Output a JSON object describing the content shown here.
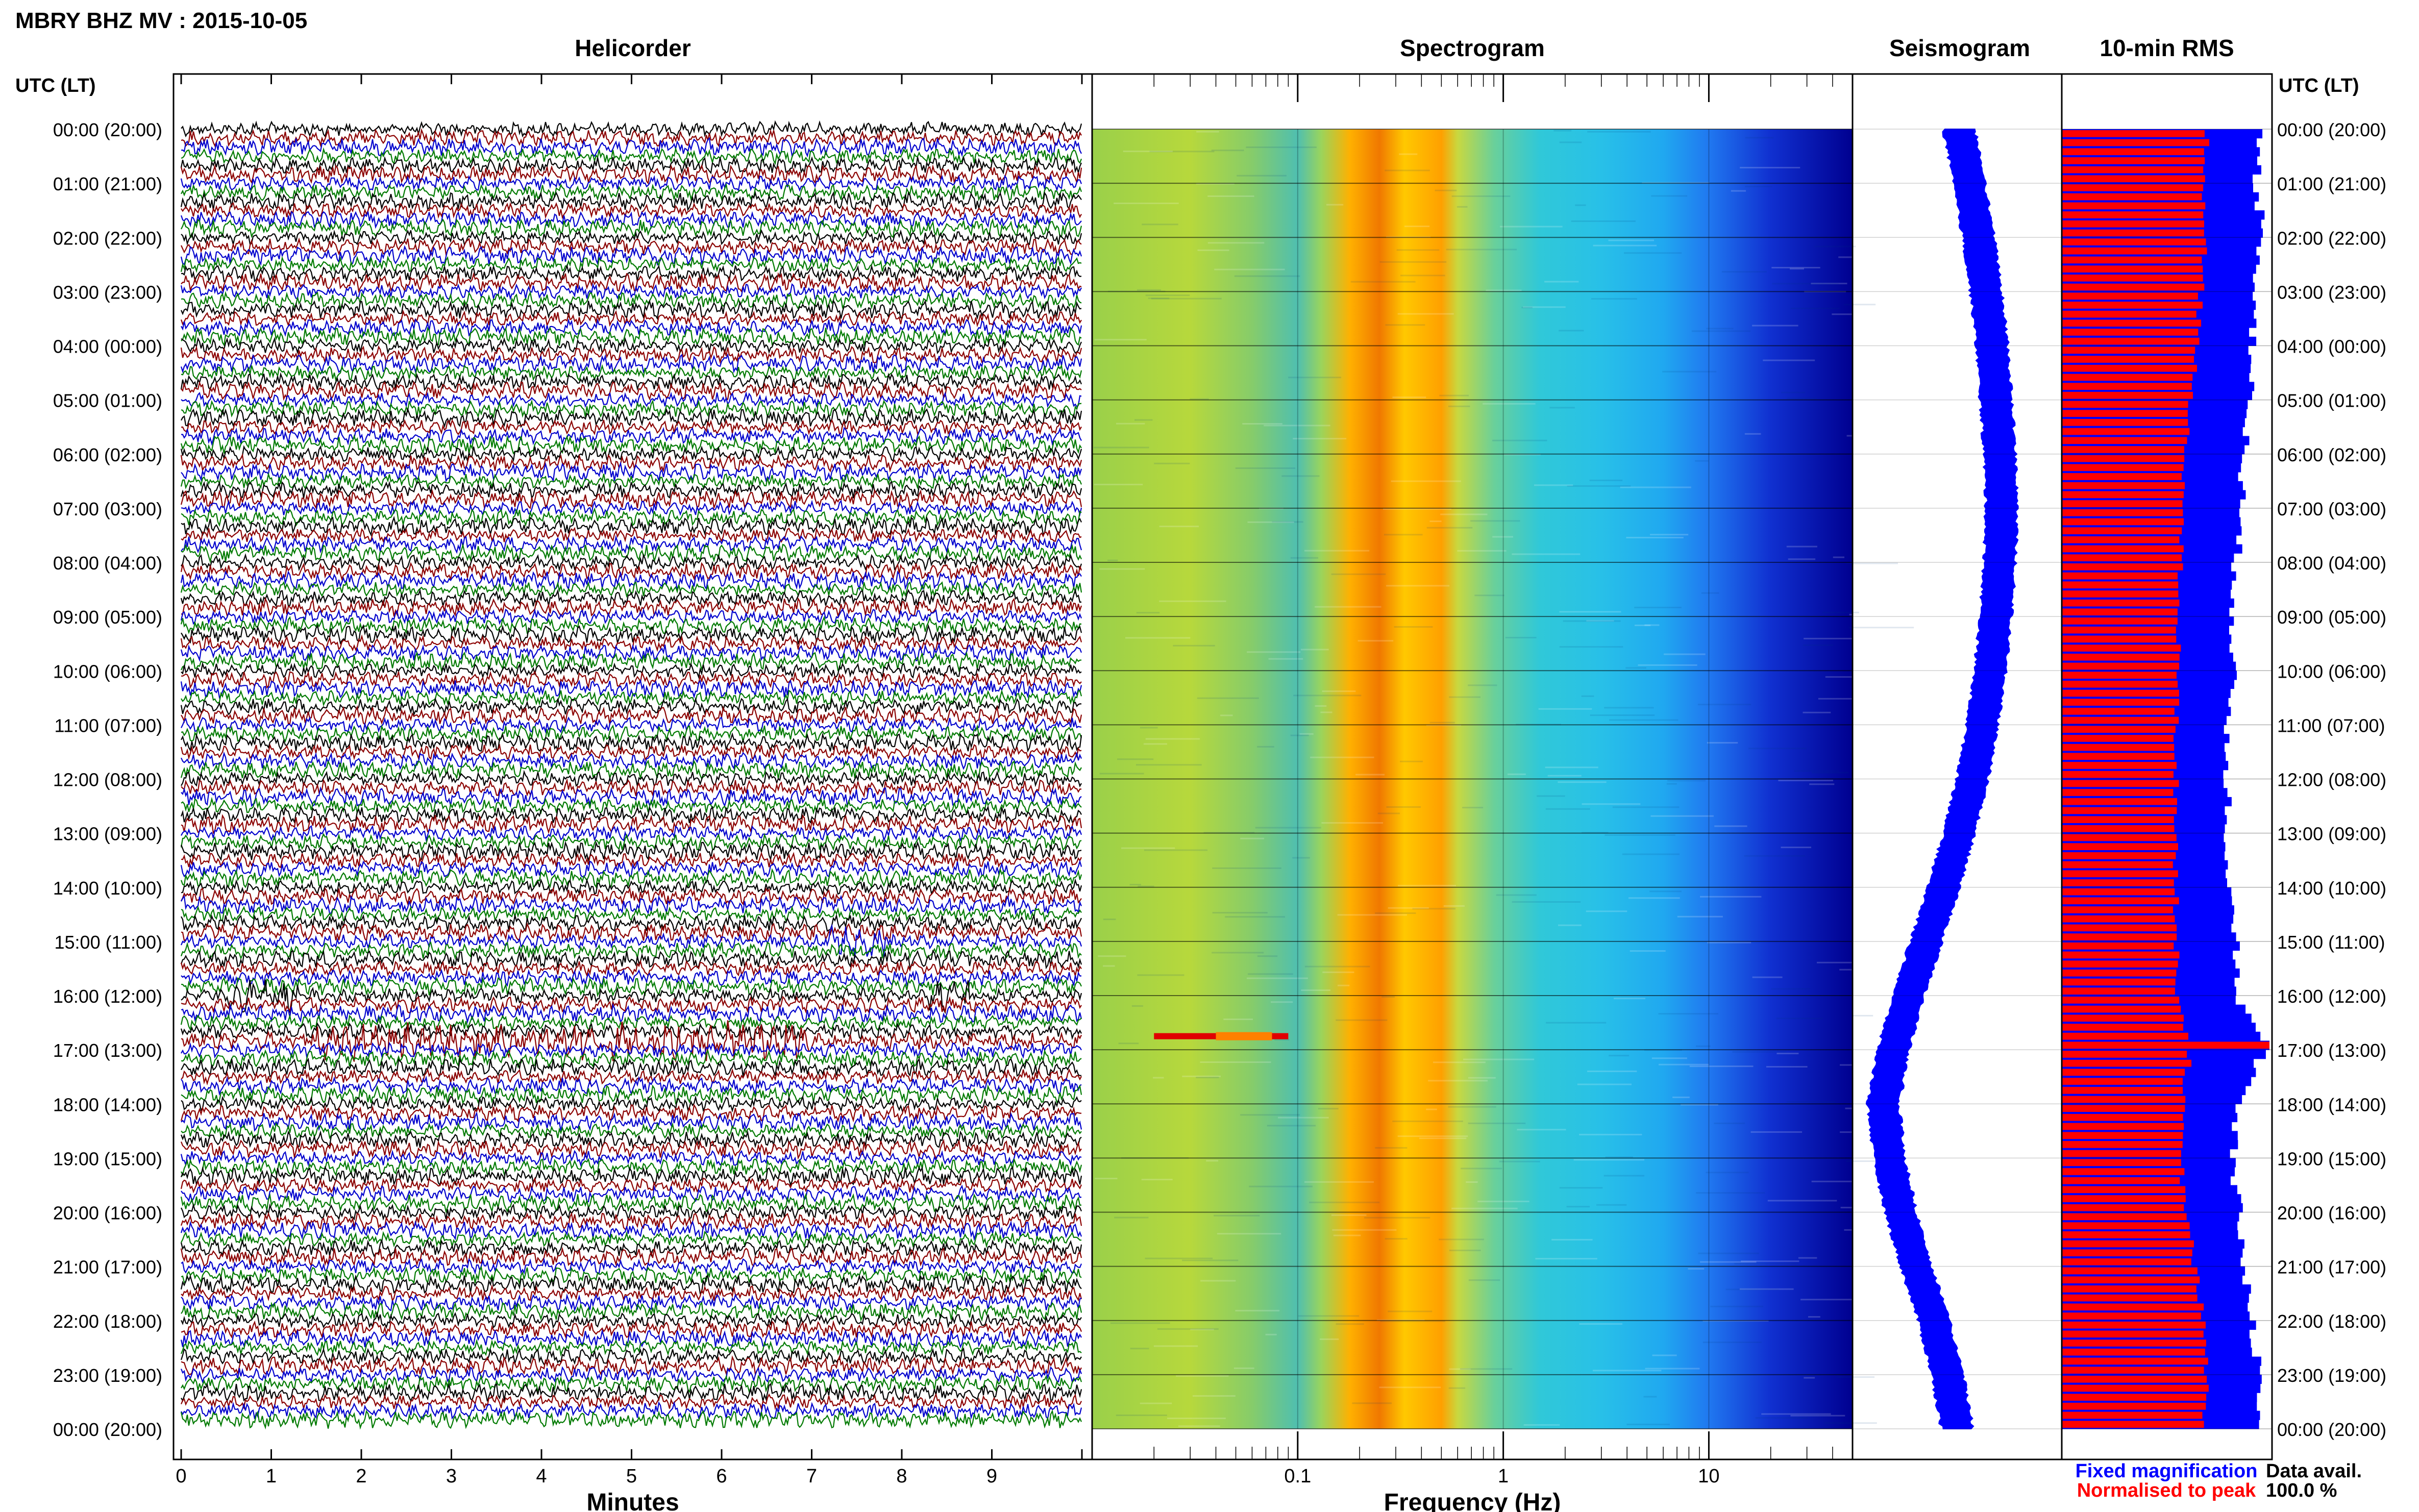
{
  "title": "MBRY BHZ MV : 2015-10-05",
  "panels": {
    "helicorder": "Helicorder",
    "spectrogram": "Spectrogram",
    "seismogram": "Seismogram",
    "rms": "10-min RMS"
  },
  "axis": {
    "time_label_left": "UTC (LT)",
    "time_label_right": "UTC (LT)",
    "helicorder_xlabel": "Minutes",
    "spectrogram_xlabel": "Frequency (Hz)"
  },
  "legend": {
    "fixed": "Fixed magnification",
    "normalised": "Normalised to peak",
    "fixed_color": "#0000ff",
    "normalised_color": "#ff0000"
  },
  "data_avail": {
    "label": "Data avail.",
    "value": "100.0 %"
  },
  "chart_data": {
    "type": "multi-panel seismic plot",
    "time_ticks": [
      "00:00 (20:00)",
      "01:00 (21:00)",
      "02:00 (22:00)",
      "03:00 (23:00)",
      "04:00 (00:00)",
      "05:00 (01:00)",
      "06:00 (02:00)",
      "07:00 (03:00)",
      "08:00 (04:00)",
      "09:00 (05:00)",
      "10:00 (06:00)",
      "11:00 (07:00)",
      "12:00 (08:00)",
      "13:00 (09:00)",
      "14:00 (10:00)",
      "15:00 (11:00)",
      "16:00 (12:00)",
      "17:00 (13:00)",
      "18:00 (14:00)",
      "19:00 (15:00)",
      "20:00 (16:00)",
      "21:00 (17:00)",
      "22:00 (18:00)",
      "23:00 (19:00)",
      "00:00 (20:00)"
    ],
    "helicorder": {
      "x_ticks": [
        0,
        1,
        2,
        3,
        4,
        5,
        6,
        7,
        8,
        9
      ],
      "xlim": [
        0,
        10
      ],
      "traces_per_hour": 6,
      "trace_colors": [
        "#000000",
        "#8b0000",
        "#0000cd",
        "#007a00"
      ],
      "events": [
        {
          "hour": 15.0,
          "minute_start": 7.2,
          "minute_end": 7.9
        },
        {
          "hour": 16.0,
          "minute_start": 0.5,
          "minute_end": 1.3
        },
        {
          "hour": 16.0,
          "minute_start": 8.3,
          "minute_end": 8.8
        },
        {
          "hour": 16.8,
          "minute_start": 1.5,
          "minute_end": 7.0
        }
      ]
    },
    "spectrogram": {
      "x_ticks": [
        0.1,
        1,
        10
      ],
      "xlim": [
        0.01,
        50
      ],
      "xscale": "log",
      "peak_band_hz": [
        0.18,
        0.5
      ],
      "burst": {
        "hour": 16.75,
        "f_start": 0.02,
        "f_end": 0.09
      }
    },
    "seismogram": {
      "hours": [
        0,
        1,
        2,
        3,
        4,
        5,
        6,
        7,
        8,
        9,
        10,
        11,
        12,
        13,
        14,
        15,
        16,
        17,
        18,
        19,
        20,
        21,
        22,
        23,
        24
      ],
      "offset": [
        0.42,
        0.47,
        0.52,
        0.56,
        0.59,
        0.61,
        0.63,
        0.64,
        0.63,
        0.61,
        0.58,
        0.54,
        0.49,
        0.42,
        0.34,
        0.25,
        0.16,
        0.08,
        0.03,
        0.06,
        0.12,
        0.2,
        0.29,
        0.36,
        0.41
      ],
      "width": 0.18
    },
    "rms": {
      "hours": [
        0,
        1,
        2,
        3,
        4,
        5,
        6,
        7,
        8,
        9,
        10,
        11,
        12,
        13,
        14,
        15,
        16,
        17,
        18,
        19,
        20,
        21,
        22,
        23,
        24
      ],
      "normalised": [
        0.7,
        0.68,
        0.69,
        0.67,
        0.65,
        0.62,
        0.6,
        0.58,
        0.57,
        0.56,
        0.56,
        0.55,
        0.55,
        0.55,
        0.55,
        0.55,
        0.56,
        0.62,
        0.58,
        0.57,
        0.6,
        0.64,
        0.68,
        0.7,
        0.68
      ],
      "fixed": [
        0.95,
        0.94,
        0.97,
        0.93,
        0.92,
        0.9,
        0.88,
        0.86,
        0.84,
        0.83,
        0.82,
        0.8,
        0.8,
        0.8,
        0.81,
        0.85,
        0.83,
        0.98,
        0.84,
        0.82,
        0.85,
        0.88,
        0.92,
        0.95,
        0.95
      ],
      "spike": {
        "hour": 16.9,
        "fixed": 1.0,
        "normalised": 1.0
      }
    }
  }
}
